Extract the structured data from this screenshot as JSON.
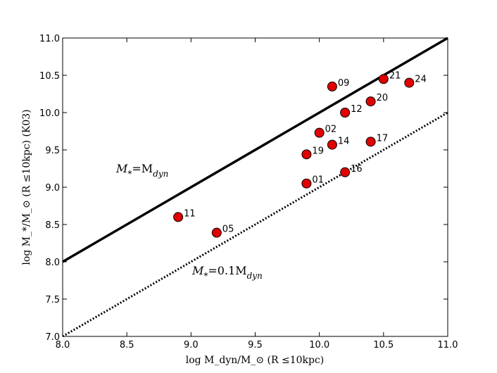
{
  "chart_data": {
    "type": "scatter",
    "xlabel": "log M_dyn/M_⊙ (R ≤10kpc)",
    "ylabel": "log M_*/M_⊙ (R ≤10kpc) (K03)",
    "xlim": [
      8.0,
      11.0
    ],
    "ylim": [
      7.0,
      11.0
    ],
    "xticks": [
      "8.0",
      "8.5",
      "9.0",
      "9.5",
      "10.0",
      "10.5",
      "11.0"
    ],
    "yticks": [
      "7.0",
      "7.5",
      "8.0",
      "8.5",
      "9.0",
      "9.5",
      "10.0",
      "10.5",
      "11.0"
    ],
    "grid": false,
    "point_color": "#e00000",
    "points": [
      {
        "label": "01",
        "x": 9.9,
        "y": 9.05
      },
      {
        "label": "02",
        "x": 10.0,
        "y": 9.73
      },
      {
        "label": "05",
        "x": 9.2,
        "y": 8.39
      },
      {
        "label": "09",
        "x": 10.1,
        "y": 10.35
      },
      {
        "label": "11",
        "x": 8.9,
        "y": 8.6
      },
      {
        "label": "12",
        "x": 10.2,
        "y": 10.0
      },
      {
        "label": "14",
        "x": 10.1,
        "y": 9.57
      },
      {
        "label": "16",
        "x": 10.2,
        "y": 9.2
      },
      {
        "label": "17",
        "x": 10.4,
        "y": 9.61
      },
      {
        "label": "19",
        "x": 9.9,
        "y": 9.44
      },
      {
        "label": "20",
        "x": 10.4,
        "y": 10.15
      },
      {
        "label": "21",
        "x": 10.5,
        "y": 10.45
      },
      {
        "label": "24",
        "x": 10.7,
        "y": 10.4
      }
    ],
    "lines": [
      {
        "name": "M_* = M_dyn",
        "style": "solid",
        "x": [
          8.0,
          11.0
        ],
        "y": [
          8.0,
          11.0
        ]
      },
      {
        "name": "M_* = 0.1 M_dyn",
        "style": "dotted",
        "x": [
          8.0,
          11.0
        ],
        "y": [
          7.0,
          10.0
        ]
      }
    ],
    "annotations": [
      {
        "base": "M",
        "sub": "*",
        "rest": "=M",
        "restsub": "dyn"
      },
      {
        "base": "M",
        "sub": "*",
        "rest": "=0.1M",
        "restsub": "dyn"
      }
    ]
  }
}
